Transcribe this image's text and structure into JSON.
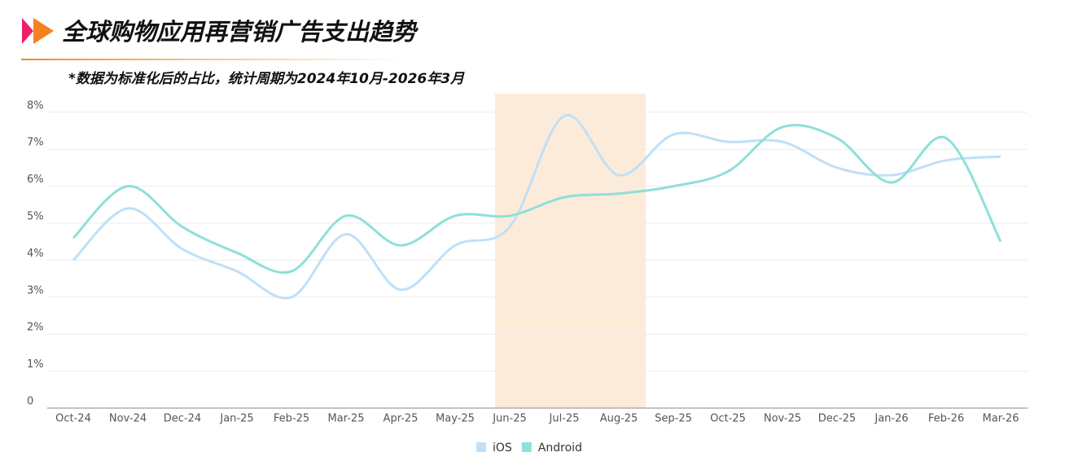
{
  "chart_data": {
    "type": "line",
    "title": "全球购物应用再营销广告支出趋势",
    "subtitle": "*数据为标准化后的占比，统计周期为2024年10月-2026年3月",
    "categories": [
      "Oct-24",
      "Nov-24",
      "Dec-24",
      "Jan-25",
      "Feb-25",
      "Mar-25",
      "Apr-25",
      "May-25",
      "Jun-25",
      "Jul-25",
      "Aug-25",
      "Sep-25",
      "Oct-25",
      "Nov-25",
      "Dec-25",
      "Jan-26",
      "Feb-26",
      "Mar-26"
    ],
    "series": [
      {
        "name": "iOS",
        "color": "#bfe0f7",
        "values": [
          4.0,
          5.4,
          4.3,
          3.7,
          3.0,
          4.7,
          3.2,
          4.4,
          4.9,
          7.9,
          6.3,
          7.4,
          7.2,
          7.2,
          6.5,
          6.3,
          6.7,
          6.8
        ]
      },
      {
        "name": "Android",
        "color": "#8ee0d8",
        "values": [
          4.6,
          6.0,
          4.9,
          4.2,
          3.7,
          5.2,
          4.4,
          5.2,
          5.2,
          5.7,
          5.8,
          6.0,
          6.4,
          7.6,
          7.3,
          6.1,
          7.3,
          4.5
        ]
      }
    ],
    "ylim": [
      0,
      8.1
    ],
    "yticks": [
      0,
      {
        "value": 1,
        "label": "1%"
      },
      {
        "value": 2,
        "label": "2%"
      },
      {
        "value": 3,
        "label": "3%"
      },
      {
        "value": 4,
        "label": "4%"
      },
      {
        "value": 5,
        "label": "5%"
      },
      {
        "value": 6,
        "label": "6%"
      },
      {
        "value": 7,
        "label": "7%"
      },
      {
        "value": 8,
        "label": "8%"
      }
    ],
    "grid": true,
    "legend": "bottom"
  }
}
